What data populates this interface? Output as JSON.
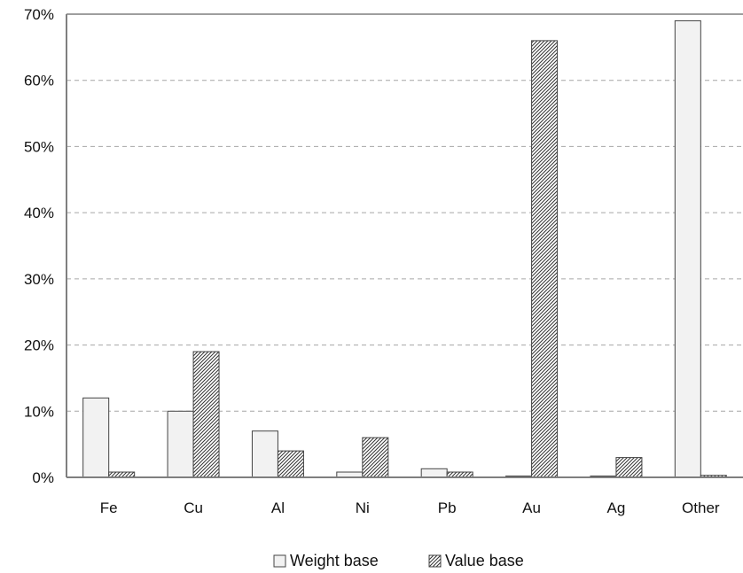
{
  "chart_data": {
    "type": "bar",
    "title": "",
    "xlabel": "",
    "ylabel": "",
    "categories": [
      "Fe",
      "Cu",
      "Al",
      "Ni",
      "Pb",
      "Au",
      "Ag",
      "Other"
    ],
    "series": [
      {
        "name": "Weight base",
        "values": [
          12,
          10,
          7,
          0.8,
          1.3,
          0.2,
          0.2,
          69
        ],
        "fill": "#f2f2f2",
        "pattern": "none"
      },
      {
        "name": "Value base",
        "values": [
          0.8,
          19,
          4,
          6,
          0.8,
          66,
          3,
          0.3
        ],
        "fill": "#ffffff",
        "pattern": "diagonal-hatch"
      }
    ],
    "ylim": [
      0,
      70
    ],
    "yticks": [
      0,
      10,
      20,
      30,
      40,
      50,
      60,
      70
    ],
    "ytick_labels": [
      "0%",
      "10%",
      "20%",
      "30%",
      "40%",
      "50%",
      "60%",
      "70%"
    ],
    "grid": "horizontal-dashed",
    "legend_position": "bottom-center"
  },
  "colors": {
    "gridline": "#a6a6a6",
    "axis": "#7f7f7f",
    "bar_stroke": "#444444",
    "hatch": "#333333"
  }
}
